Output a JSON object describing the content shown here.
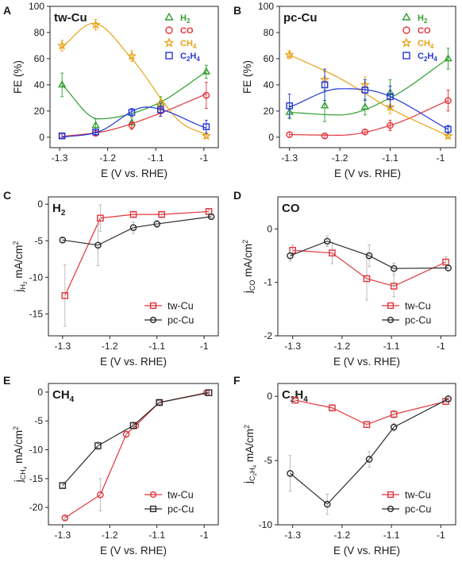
{
  "figure": {
    "panels": [
      {
        "letter": "A"
      },
      {
        "letter": "B"
      },
      {
        "letter": "C"
      },
      {
        "letter": "D"
      },
      {
        "letter": "E"
      },
      {
        "letter": "F"
      }
    ]
  },
  "colors": {
    "H2": "#2e9e2e",
    "CO": "#e2343c",
    "CH4": "#e8a317",
    "C2H4": "#2436d8",
    "tw-Cu": "#e2343c",
    "pc-Cu": "#2b2b2b"
  },
  "chart_data": [
    {
      "panel": "A",
      "type": "scatter",
      "inset_label": "tw-Cu",
      "xlabel": "E (V vs. RHE)",
      "ylabel": "FE (%)",
      "xlim": [
        -1.32,
        -0.97
      ],
      "ylim": [
        -8,
        100
      ],
      "xticks": [
        -1.3,
        -1.2,
        -1.1,
        -1.0
      ],
      "xtick_labels": [
        "-1.3",
        "-1.2",
        "-1.1",
        "-1"
      ],
      "yticks": [
        0,
        20,
        40,
        60,
        80,
        100
      ],
      "ytick_labels": [
        "0",
        "20",
        "40",
        "60",
        "80",
        "100"
      ],
      "legend_position": "top-right",
      "x": [
        -1.295,
        -1.225,
        -1.15,
        -1.09,
        -0.995
      ],
      "series": [
        {
          "name": "H2",
          "label_base": "H",
          "label_sub": "2",
          "color": "#2e9e2e",
          "marker": "triangle",
          "values": [
            40,
            9,
            11,
            26,
            50
          ],
          "errors": [
            9,
            5,
            4,
            5,
            5
          ],
          "fit": [
            [
              -1.295,
              40
            ],
            [
              -1.22,
              14
            ],
            [
              -1.1,
              25
            ],
            [
              -0.995,
              50
            ]
          ]
        },
        {
          "name": "CO",
          "label_base": "CO",
          "label_sub": "",
          "color": "#e2343c",
          "marker": "circle",
          "values": [
            1,
            3,
            9,
            20,
            32
          ],
          "errors": [
            2,
            2,
            3,
            4,
            10
          ],
          "fit": [
            [
              -1.295,
              0.5
            ],
            [
              -1.2,
              5
            ],
            [
              -1.1,
              17
            ],
            [
              -0.995,
              33
            ]
          ]
        },
        {
          "name": "CH4",
          "label_base": "CH",
          "label_sub": "4",
          "color": "#e8a317",
          "marker": "star",
          "values": [
            70,
            86,
            62,
            25,
            1
          ],
          "errors": [
            4,
            4,
            4,
            5,
            2
          ],
          "fit": [
            [
              -1.295,
              69
            ],
            [
              -1.23,
              87
            ],
            [
              -1.15,
              60
            ],
            [
              -1.05,
              12
            ],
            [
              -0.995,
              2
            ]
          ]
        },
        {
          "name": "C2H4",
          "label_base": "C",
          "label_sub": "2",
          "label_base2": "H",
          "label_sub2": "4",
          "color": "#2436d8",
          "marker": "square",
          "values": [
            1,
            4,
            19,
            21,
            8
          ],
          "errors": [
            2,
            2,
            3,
            5,
            5
          ],
          "fit": [
            [
              -1.295,
              0
            ],
            [
              -1.22,
              4
            ],
            [
              -1.12,
              23
            ],
            [
              -0.995,
              7
            ]
          ]
        }
      ]
    },
    {
      "panel": "B",
      "type": "scatter",
      "inset_label": "pc-Cu",
      "xlabel": "E (V vs. RHE)",
      "ylabel": "FE (%)",
      "xlim": [
        -1.32,
        -0.97
      ],
      "ylim": [
        -8,
        100
      ],
      "xticks": [
        -1.3,
        -1.2,
        -1.1,
        -1.0
      ],
      "xtick_labels": [
        "-1.3",
        "-1.2",
        "-1.1",
        "-1"
      ],
      "yticks": [
        0,
        20,
        40,
        60,
        80,
        100
      ],
      "ytick_labels": [
        "0",
        "20",
        "40",
        "60",
        "80",
        "100"
      ],
      "legend_position": "top-right",
      "x": [
        -1.3,
        -1.23,
        -1.15,
        -1.1,
        -0.985
      ],
      "series": [
        {
          "name": "H2",
          "label_base": "H",
          "label_sub": "2",
          "color": "#2e9e2e",
          "marker": "triangle",
          "values": [
            19,
            24,
            23,
            34,
            60
          ],
          "errors": [
            5,
            12,
            6,
            10,
            8
          ],
          "fit": [
            [
              -1.3,
              19
            ],
            [
              -1.2,
              17
            ],
            [
              -1.1,
              30
            ],
            [
              -0.985,
              60
            ]
          ]
        },
        {
          "name": "CO",
          "label_base": "CO",
          "label_sub": "",
          "color": "#e2343c",
          "marker": "circle",
          "values": [
            2,
            1,
            4,
            9,
            28
          ],
          "errors": [
            2,
            2,
            2,
            4,
            8
          ],
          "fit": [
            [
              -1.3,
              2
            ],
            [
              -1.2,
              1.5
            ],
            [
              -1.1,
              9
            ],
            [
              -0.985,
              28
            ]
          ]
        },
        {
          "name": "CH4",
          "label_base": "CH",
          "label_sub": "4",
          "color": "#e8a317",
          "marker": "star",
          "values": [
            63,
            44,
            40,
            23,
            1
          ],
          "errors": [
            3,
            6,
            6,
            5,
            2
          ],
          "fit": [
            [
              -1.3,
              63
            ],
            [
              -1.2,
              45
            ],
            [
              -1.1,
              22
            ],
            [
              -0.985,
              1
            ]
          ]
        },
        {
          "name": "C2H4",
          "label_base": "C",
          "label_sub": "2",
          "label_base2": "H",
          "label_sub2": "4",
          "color": "#2436d8",
          "marker": "square",
          "values": [
            24,
            40,
            36,
            31,
            6
          ],
          "errors": [
            9,
            12,
            8,
            8,
            3
          ],
          "fit": [
            [
              -1.3,
              23
            ],
            [
              -1.2,
              37
            ],
            [
              -1.12,
              34
            ],
            [
              -0.985,
              6
            ]
          ]
        }
      ]
    },
    {
      "panel": "C",
      "type": "line",
      "inset_base": "H",
      "inset_sub": "2",
      "xlabel": "E (V vs. RHE)",
      "ylabel_base": "j",
      "ylabel_sub": "H",
      "ylabel_sub2": "2",
      "ylabel_unit": " mA/cm",
      "ylabel_sup": "2",
      "xlim": [
        -1.33,
        -0.97
      ],
      "ylim": [
        -18,
        1
      ],
      "xticks": [
        -1.3,
        -1.2,
        -1.1,
        -1.0
      ],
      "xtick_labels": [
        "-1.3",
        "-1.2",
        "-1.1",
        "-1"
      ],
      "yticks": [
        0,
        -5,
        -10,
        -15
      ],
      "ytick_labels": [
        "0",
        "-5",
        "-10",
        "-15"
      ],
      "legend_position": "bottom-right",
      "series": [
        {
          "name": "tw-Cu",
          "color": "#e2343c",
          "marker": "square",
          "x": [
            -1.295,
            -1.22,
            -1.15,
            -1.09,
            -0.99
          ],
          "values": [
            -12.5,
            -1.9,
            -1.4,
            -1.4,
            -1.0
          ],
          "errors": [
            4.2,
            1.8,
            0.3,
            0.3,
            0.3
          ]
        },
        {
          "name": "pc-Cu",
          "color": "#2b2b2b",
          "marker": "circle",
          "x": [
            -1.3,
            -1.225,
            -1.15,
            -1.1,
            -0.985
          ],
          "values": [
            -4.9,
            -5.6,
            -3.2,
            -2.7,
            -1.7
          ],
          "errors": [
            0.3,
            2.8,
            0.8,
            0.5,
            0.2
          ]
        }
      ]
    },
    {
      "panel": "D",
      "type": "line",
      "inset_base": "CO",
      "inset_sub": "",
      "xlabel": "E (V vs. RHE)",
      "ylabel_base": "j",
      "ylabel_sub": "CO",
      "ylabel_sub2": "",
      "ylabel_unit": " mA/cm",
      "ylabel_sup": "2",
      "xlim": [
        -1.33,
        -0.97
      ],
      "ylim": [
        -2,
        0.6
      ],
      "xticks": [
        -1.3,
        -1.2,
        -1.1,
        -1.0
      ],
      "xtick_labels": [
        "-1.3",
        "-1.2",
        "-1.1",
        "-1"
      ],
      "yticks": [
        0,
        -1,
        -2
      ],
      "ytick_labels": [
        "0",
        "-1",
        "-2"
      ],
      "legend_position": "bottom-right",
      "series": [
        {
          "name": "tw-Cu",
          "color": "#e2343c",
          "marker": "square",
          "x": [
            -1.3,
            -1.22,
            -1.15,
            -1.095,
            -0.99
          ],
          "values": [
            -0.4,
            -0.45,
            -0.93,
            -1.07,
            -0.62
          ],
          "errors": [
            0.1,
            0.2,
            0.4,
            0.2,
            0.1
          ]
        },
        {
          "name": "pc-Cu",
          "color": "#2b2b2b",
          "marker": "circle",
          "x": [
            -1.305,
            -1.23,
            -1.145,
            -1.095,
            -0.985
          ],
          "values": [
            -0.5,
            -0.23,
            -0.5,
            -0.74,
            -0.73
          ],
          "errors": [
            0.1,
            0.1,
            0.2,
            0.1,
            0.05
          ]
        }
      ]
    },
    {
      "panel": "E",
      "type": "line",
      "inset_base": "CH",
      "inset_sub": "4",
      "xlabel": "E (V vs. RHE)",
      "ylabel_base": "j",
      "ylabel_sub": "CH",
      "ylabel_sub2": "4",
      "ylabel_unit": " mA/cm",
      "ylabel_sup": "2",
      "xlim": [
        -1.33,
        -0.97
      ],
      "ylim": [
        -23,
        1.5
      ],
      "xticks": [
        -1.3,
        -1.2,
        -1.1,
        -1.0
      ],
      "xtick_labels": [
        "-1.3",
        "-1.2",
        "-1.1",
        "-1"
      ],
      "yticks": [
        0,
        -5,
        -10,
        -15,
        -20
      ],
      "ytick_labels": [
        "0",
        "-5",
        "-10",
        "-15",
        "-20"
      ],
      "legend_position": "bottom-right",
      "series": [
        {
          "name": "tw-Cu",
          "color": "#e2343c",
          "marker": "circle",
          "x": [
            -1.295,
            -1.22,
            -1.165,
            -1.145,
            -1.095,
            -0.995
          ],
          "values": [
            -21.8,
            -17.8,
            -7.3,
            -5.8,
            -1.8,
            -0.1
          ],
          "errors": [
            0.3,
            2.8,
            0.5,
            0.5,
            0.4,
            0.2
          ]
        },
        {
          "name": "pc-Cu",
          "color": "#2b2b2b",
          "marker": "square",
          "x": [
            -1.3,
            -1.225,
            -1.15,
            -1.095,
            -0.99
          ],
          "values": [
            -16.2,
            -9.3,
            -5.8,
            -1.8,
            -0.1
          ],
          "errors": [
            0.3,
            0.7,
            0.6,
            0.3,
            0.2
          ]
        }
      ]
    },
    {
      "panel": "F",
      "type": "line",
      "inset_base": "C",
      "inset_sub": "2",
      "inset_base2": "H",
      "inset_sub2": "4",
      "xlabel": "E (V vs. RHE)",
      "ylabel_base": "j",
      "ylabel_sub": "C",
      "ylabel_sub2": "2",
      "ylabel_mid": "H",
      "ylabel_sub3": "4",
      "ylabel_unit": " mA/cm",
      "ylabel_sup": "2",
      "xlim": [
        -1.33,
        -0.97
      ],
      "ylim": [
        -10,
        1
      ],
      "xticks": [
        -1.3,
        -1.2,
        -1.1,
        -1.0
      ],
      "xtick_labels": [
        "-1.3",
        "-1.2",
        "-1.1",
        "-1"
      ],
      "yticks": [
        0,
        -5,
        -10
      ],
      "ytick_labels": [
        "0",
        "-5",
        "-10"
      ],
      "legend_position": "bottom-right",
      "series": [
        {
          "name": "tw-Cu",
          "color": "#e2343c",
          "marker": "square",
          "x": [
            -1.295,
            -1.22,
            -1.15,
            -1.095,
            -0.99
          ],
          "values": [
            -0.3,
            -0.9,
            -2.2,
            -1.4,
            -0.4
          ],
          "errors": [
            0.2,
            0.2,
            0.2,
            0.3,
            0.2
          ]
        },
        {
          "name": "pc-Cu",
          "color": "#2b2b2b",
          "marker": "circle",
          "x": [
            -1.305,
            -1.23,
            -1.145,
            -1.095,
            -0.985
          ],
          "values": [
            -6.0,
            -8.4,
            -4.9,
            -2.4,
            -0.2
          ],
          "errors": [
            1.4,
            0.8,
            0.6,
            0.3,
            0.2
          ]
        }
      ]
    }
  ]
}
